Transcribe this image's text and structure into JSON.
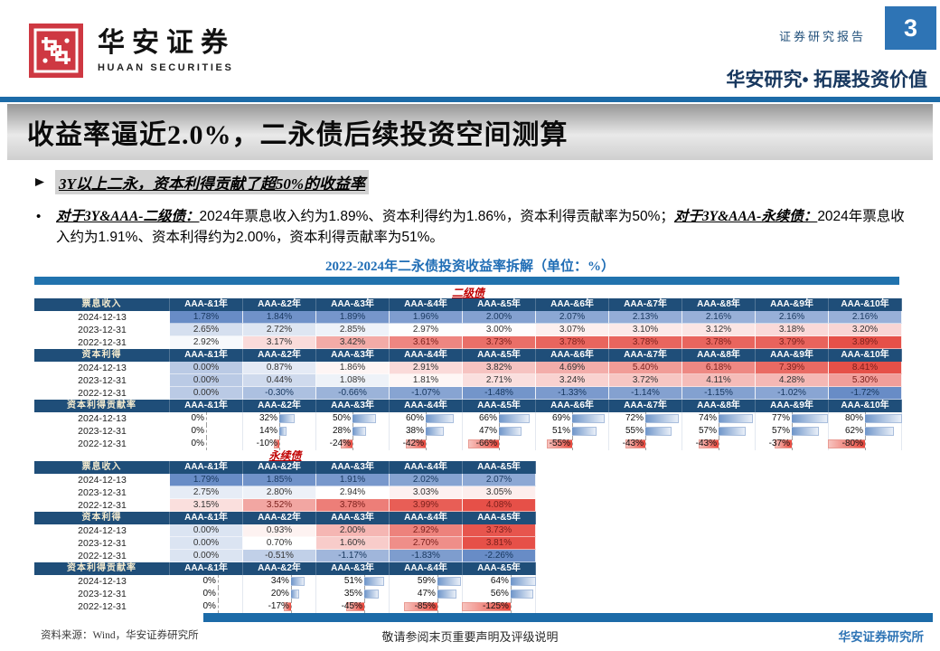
{
  "header": {
    "logo_cn": "华安证券",
    "logo_en": "HUAAN SECURITIES",
    "report_label": "证券研究报告",
    "page_number": "3",
    "tagline": "华安研究• 拓展投资价值"
  },
  "title": "收益率逼近2.0%，二永债后续投资空间测算",
  "bullet": "3Y以上二永，资本利得贡献了超50%的收益率",
  "paragraph": {
    "marker": "•",
    "seg1": "对于3Y&AAA-二级债：",
    "seg2": "2024年票息收入约为1.89%、资本利得约为1.86%，资本利得贡献率为50%；",
    "seg3": "对于3Y&AAA-永续债：",
    "seg4": "2024年票息收入约为1.91%、资本利得约为2.00%，资本利得贡献率为51%。"
  },
  "chart_title": "2022-2024年二永债投资收益率拆解（单位：%）",
  "chart_data": {
    "type": "table",
    "title": "2022-2024年二永债投资收益率拆解（单位：%）",
    "groups": [
      {
        "name": "二级债",
        "columns": [
          "AAA-&1年",
          "AAA-&2年",
          "AAA-&3年",
          "AAA-&4年",
          "AAA-&5年",
          "AAA-&6年",
          "AAA-&7年",
          "AAA-&8年",
          "AAA-&9年",
          "AAA-&10年"
        ],
        "sections": [
          {
            "label": "票息收入",
            "style": "colorscale",
            "unit": "%",
            "rows": [
              {
                "date": "2024-12-13",
                "values": [
                  1.78,
                  1.84,
                  1.89,
                  1.96,
                  2.0,
                  2.07,
                  2.13,
                  2.16,
                  2.16,
                  2.16
                ]
              },
              {
                "date": "2023-12-31",
                "values": [
                  2.65,
                  2.72,
                  2.85,
                  2.97,
                  3.0,
                  3.07,
                  3.1,
                  3.12,
                  3.18,
                  3.2
                ]
              },
              {
                "date": "2022-12-31",
                "values": [
                  2.92,
                  3.17,
                  3.42,
                  3.61,
                  3.73,
                  3.78,
                  3.78,
                  3.78,
                  3.79,
                  3.89
                ]
              }
            ]
          },
          {
            "label": "资本利得",
            "style": "colorscale",
            "unit": "%",
            "rows": [
              {
                "date": "2024-12-13",
                "values": [
                  0.0,
                  0.87,
                  1.86,
                  2.91,
                  3.82,
                  4.69,
                  5.4,
                  6.18,
                  7.39,
                  8.41
                ]
              },
              {
                "date": "2023-12-31",
                "values": [
                  0.0,
                  0.44,
                  1.08,
                  1.81,
                  2.71,
                  3.24,
                  3.72,
                  4.11,
                  4.28,
                  5.3
                ]
              },
              {
                "date": "2022-12-31",
                "values": [
                  0.0,
                  -0.3,
                  -0.66,
                  -1.07,
                  -1.48,
                  -1.33,
                  -1.14,
                  -1.15,
                  -1.02,
                  -1.72
                ]
              }
            ]
          },
          {
            "label": "资本利得贡献率",
            "style": "databar",
            "unit": "%",
            "rows": [
              {
                "date": "2024-12-13",
                "values": [
                  0,
                  32,
                  50,
                  60,
                  66,
                  69,
                  72,
                  74,
                  77,
                  80
                ]
              },
              {
                "date": "2023-12-31",
                "values": [
                  0,
                  14,
                  28,
                  38,
                  47,
                  51,
                  55,
                  57,
                  57,
                  62
                ]
              },
              {
                "date": "2022-12-31",
                "values": [
                  0,
                  -10,
                  -24,
                  -42,
                  -66,
                  -55,
                  -43,
                  -43,
                  -37,
                  -80
                ]
              }
            ]
          }
        ]
      },
      {
        "name": "永续债",
        "columns": [
          "AAA-&1年",
          "AAA-&2年",
          "AAA-&3年",
          "AAA-&4年",
          "AAA-&5年"
        ],
        "sections": [
          {
            "label": "票息收入",
            "style": "colorscale",
            "unit": "%",
            "rows": [
              {
                "date": "2024-12-13",
                "values": [
                  1.79,
                  1.85,
                  1.91,
                  2.02,
                  2.07
                ]
              },
              {
                "date": "2023-12-31",
                "values": [
                  2.75,
                  2.8,
                  2.94,
                  3.03,
                  3.05
                ]
              },
              {
                "date": "2022-12-31",
                "values": [
                  3.15,
                  3.52,
                  3.78,
                  3.99,
                  4.08
                ]
              }
            ]
          },
          {
            "label": "资本利得",
            "style": "colorscale",
            "unit": "%",
            "rows": [
              {
                "date": "2024-12-13",
                "values": [
                  0.0,
                  0.93,
                  2.0,
                  2.92,
                  3.73
                ]
              },
              {
                "date": "2023-12-31",
                "values": [
                  0.0,
                  0.7,
                  1.6,
                  2.7,
                  3.81
                ]
              },
              {
                "date": "2022-12-31",
                "values": [
                  0.0,
                  -0.51,
                  -1.17,
                  -1.83,
                  -2.26
                ]
              }
            ]
          },
          {
            "label": "资本利得贡献率",
            "style": "databar",
            "unit": "%",
            "rows": [
              {
                "date": "2024-12-13",
                "values": [
                  0,
                  34,
                  51,
                  59,
                  64
                ]
              },
              {
                "date": "2023-12-31",
                "values": [
                  0,
                  20,
                  35,
                  47,
                  56
                ]
              },
              {
                "date": "2022-12-31",
                "values": [
                  0,
                  -17,
                  -45,
                  -85,
                  -125
                ]
              }
            ]
          }
        ]
      }
    ]
  },
  "footer": {
    "source": "资料来源：Wind，华安证券研究所",
    "disclaimer": "敬请参阅末页重要声明及评级说明",
    "institute": "华安证券研究所"
  },
  "colors": {
    "header_navy": "#1F4E79",
    "rule_blue": "#1C6BA8",
    "group_label_red": "#C00000",
    "scale_blue": "#688CC6",
    "scale_red": "#E65048",
    "accent_blue": "#2E74B5"
  }
}
